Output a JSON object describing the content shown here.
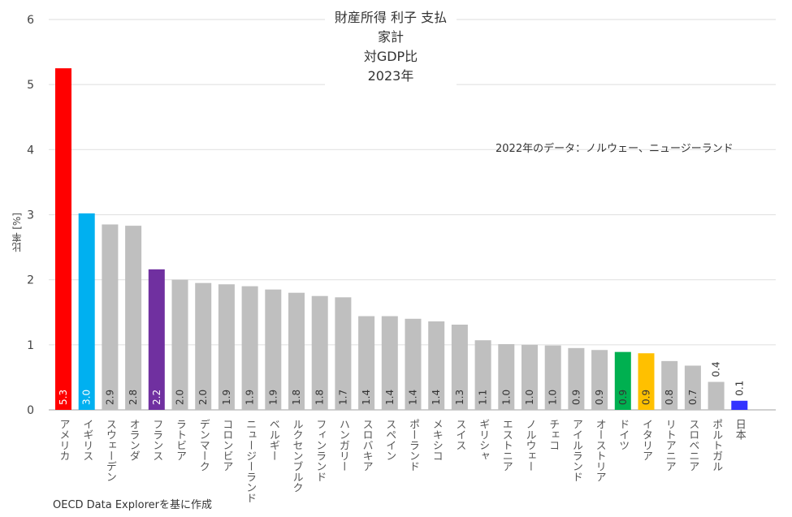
{
  "chart_data": {
    "type": "bar",
    "title": [
      "財産所得 利子 支払",
      "家計",
      "対GDP比",
      "2023年"
    ],
    "note": "2022年のデータ：ノルウェー、ニュージーランド",
    "ylabel": "比率 [%]",
    "xlabel": "",
    "ylim": [
      0,
      6
    ],
    "yticks": [
      0,
      1,
      2,
      3,
      4,
      5,
      6
    ],
    "grid": true,
    "categories": [
      "アメリカ",
      "イギリス",
      "スウェーデン",
      "オランダ",
      "フランス",
      "ラトビア",
      "デンマーク",
      "コロンビア",
      "ニュージーランド",
      "ベルギー",
      "ルクセンブルク",
      "フィンランド",
      "ハンガリー",
      "スロバキア",
      "スペイン",
      "ポーランド",
      "メキシコ",
      "スイス",
      "ギリシャ",
      "エストニア",
      "ノルウェー",
      "チェコ",
      "アイルランド",
      "オーストリア",
      "ドイツ",
      "イタリア",
      "リトアニア",
      "スロベニア",
      "ポルトガル",
      "日本"
    ],
    "values": [
      5.25,
      3.02,
      2.85,
      2.83,
      2.16,
      2.0,
      1.95,
      1.93,
      1.9,
      1.85,
      1.8,
      1.75,
      1.73,
      1.44,
      1.44,
      1.4,
      1.36,
      1.31,
      1.07,
      1.01,
      1.0,
      0.99,
      0.95,
      0.92,
      0.89,
      0.87,
      0.75,
      0.68,
      0.43,
      0.14
    ],
    "labels": [
      "5.3",
      "3.0",
      "2.9",
      "2.8",
      "2.2",
      "2.0",
      "2.0",
      "1.9",
      "1.9",
      "1.9",
      "1.8",
      "1.8",
      "1.7",
      "1.4",
      "1.4",
      "1.4",
      "1.4",
      "1.3",
      "1.1",
      "1.0",
      "1.0",
      "1.0",
      "0.9",
      "0.9",
      "0.9",
      "0.9",
      "0.8",
      "0.7",
      "0.4",
      "0.1"
    ],
    "colors": {
      "default": "#bfbfbf",
      "アメリカ": "#ff0000",
      "イギリス": "#00b0f0",
      "フランス": "#7030a0",
      "ドイツ": "#00b050",
      "イタリア": "#ffc000",
      "日本": "#3333ff"
    }
  },
  "footer": "OECD Data Explorerを基に作成"
}
